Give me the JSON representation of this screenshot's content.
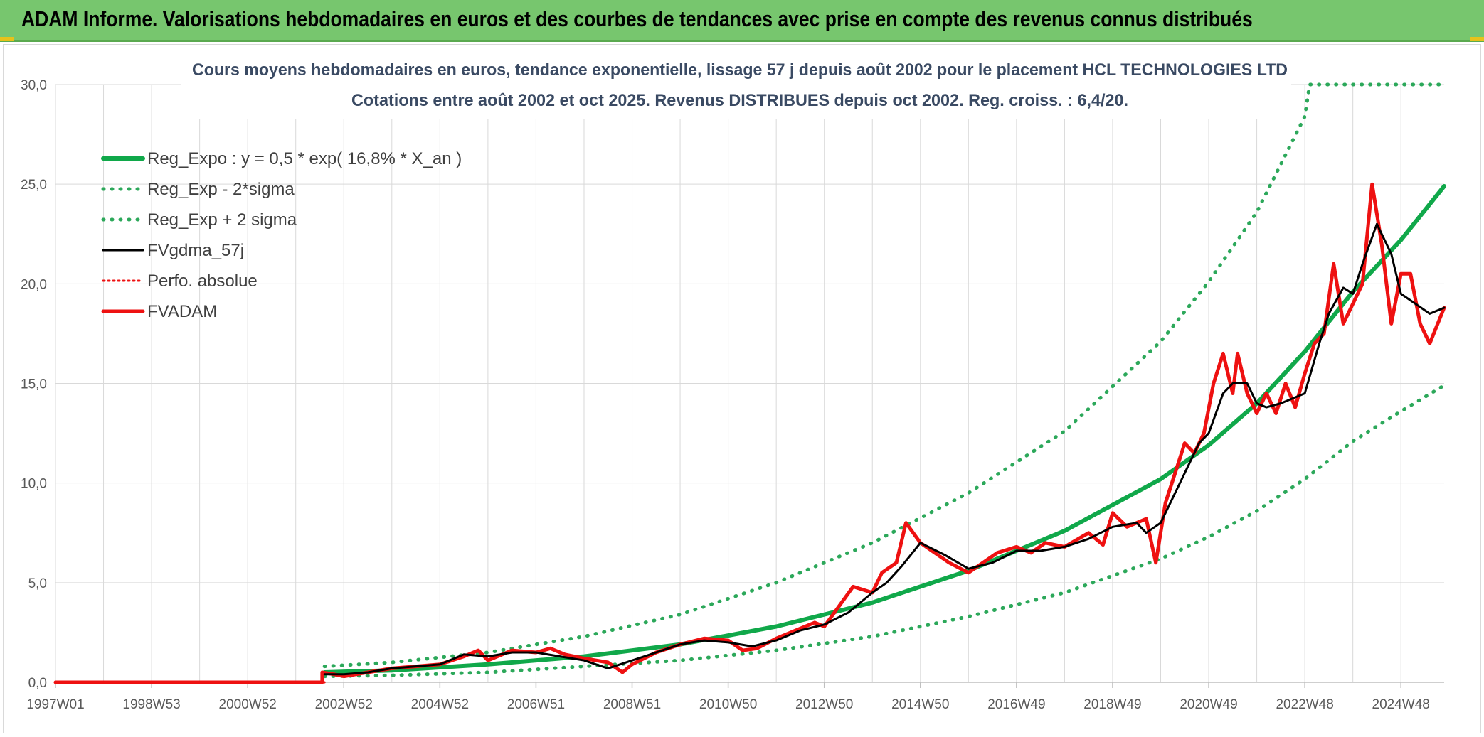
{
  "header": {
    "title": "ADAM Informe. Valorisations hebdomadaires en euros et des courbes de tendances avec prise en compte des revenus connus distribués"
  },
  "colors": {
    "header_bg": "#77c66e",
    "reg_green": "#10a84a",
    "band_green": "#2ca85a",
    "fvgdma_black": "#000000",
    "fvadam_red": "#ee1111",
    "perfo_red": "#ee1111"
  },
  "chart_data": {
    "type": "line",
    "title_line1": "Cours moyens hebdomadaires en euros, tendance exponentielle, lissage 57 j depuis août 2002 pour le placement HCL TECHNOLOGIES LTD",
    "title_line2": "Cotations entre août 2002 et oct 2025. Revenus DISTRIBUES depuis oct 2002. Reg. croiss. : 6,4/20.",
    "xlabel": "",
    "ylabel": "",
    "x_range": [
      1997.0,
      2025.9
    ],
    "ylim": [
      0,
      30
    ],
    "y_ticks": [
      0,
      5,
      10,
      15,
      20,
      25,
      30
    ],
    "y_tick_labels": [
      "0,0",
      "5,0",
      "10,0",
      "15,0",
      "20,0",
      "25,0",
      "30,0"
    ],
    "x_ticks": [
      1997.0,
      1999.0,
      2001.0,
      2003.0,
      2005.0,
      2007.0,
      2009.0,
      2011.0,
      2013.0,
      2015.0,
      2017.0,
      2019.0,
      2021.0,
      2023.0,
      2025.0
    ],
    "x_tick_labels": [
      "1997W01",
      "1998W53",
      "2000W52",
      "2002W52",
      "2004W52",
      "2006W51",
      "2008W51",
      "2010W50",
      "2012W50",
      "2014W50",
      "2016W49",
      "2018W49",
      "2020W49",
      "2022W48",
      "2024W48"
    ],
    "grid": true,
    "legend_position": "top-left",
    "legend": [
      {
        "name": "Reg_Expo : y = 0,5 * exp( 16,8% *  X_an )",
        "style": "solid-thick",
        "color": "#10a84a"
      },
      {
        "name": "Reg_Exp - 2*sigma",
        "style": "dotted",
        "color": "#2ca85a"
      },
      {
        "name": "Reg_Exp + 2 sigma",
        "style": "dotted",
        "color": "#2ca85a"
      },
      {
        "name": "FVgdma_57j",
        "style": "solid",
        "color": "#000000"
      },
      {
        "name": "Perfo. absolue",
        "style": "dotted",
        "color": "#ee1111"
      },
      {
        "name": "FVADAM",
        "style": "solid-thick",
        "color": "#ee1111"
      }
    ],
    "series": [
      {
        "name": "Reg_Expo : y = 0,5 * exp( 16,8% *  X_an )",
        "x": [
          2002.6,
          2004.0,
          2006.0,
          2008.0,
          2010.0,
          2012.0,
          2014.0,
          2016.0,
          2018.0,
          2020.0,
          2021.0,
          2022.0,
          2023.0,
          2024.0,
          2025.0,
          2025.9
        ],
        "y": [
          0.5,
          0.6,
          0.9,
          1.3,
          1.9,
          2.8,
          4.0,
          5.6,
          7.6,
          10.2,
          11.9,
          14.0,
          16.6,
          19.6,
          22.2,
          24.9
        ]
      },
      {
        "name": "Reg_Exp - 2*sigma",
        "x": [
          2002.6,
          2004.0,
          2006.0,
          2008.0,
          2010.0,
          2012.0,
          2014.0,
          2016.0,
          2018.0,
          2020.0,
          2021.0,
          2022.0,
          2023.0,
          2024.0,
          2025.0,
          2025.9
        ],
        "y": [
          0.3,
          0.35,
          0.5,
          0.8,
          1.1,
          1.6,
          2.3,
          3.3,
          4.5,
          6.2,
          7.3,
          8.6,
          10.2,
          12.1,
          13.6,
          14.9
        ]
      },
      {
        "name": "Reg_Exp + 2 sigma",
        "x": [
          2002.6,
          2004.0,
          2006.0,
          2008.0,
          2010.0,
          2012.0,
          2014.0,
          2016.0,
          2018.0,
          2020.0,
          2021.0,
          2022.0,
          2023.0,
          2023.1,
          2024.0,
          2025.0,
          2025.9
        ],
        "y": [
          0.8,
          1.0,
          1.5,
          2.3,
          3.4,
          5.0,
          7.0,
          9.5,
          12.6,
          17.1,
          20.1,
          23.6,
          28.4,
          30.0,
          30.0,
          30.0,
          30.0
        ]
      },
      {
        "name": "FVgdma_57j",
        "x": [
          2002.6,
          2003.0,
          2003.5,
          2004.0,
          2004.5,
          2005.0,
          2005.5,
          2006.0,
          2006.5,
          2007.0,
          2007.5,
          2008.0,
          2008.5,
          2009.0,
          2009.5,
          2010.0,
          2010.5,
          2011.0,
          2011.5,
          2012.0,
          2012.5,
          2013.0,
          2013.5,
          2014.0,
          2014.3,
          2014.6,
          2015.0,
          2015.5,
          2016.0,
          2016.5,
          2017.0,
          2017.5,
          2018.0,
          2018.5,
          2019.0,
          2019.5,
          2019.7,
          2020.0,
          2020.5,
          2020.8,
          2021.0,
          2021.3,
          2021.5,
          2021.8,
          2022.0,
          2022.2,
          2022.5,
          2022.8,
          2023.0,
          2023.3,
          2023.5,
          2023.8,
          2024.0,
          2024.2,
          2024.5,
          2024.8,
          2025.0,
          2025.3,
          2025.6,
          2025.9
        ],
        "y": [
          0.4,
          0.4,
          0.5,
          0.7,
          0.8,
          0.9,
          1.4,
          1.3,
          1.5,
          1.5,
          1.3,
          1.1,
          0.7,
          1.1,
          1.5,
          1.9,
          2.1,
          2.0,
          1.8,
          2.1,
          2.6,
          2.9,
          3.5,
          4.5,
          5.0,
          5.8,
          7.0,
          6.4,
          5.7,
          6.0,
          6.6,
          6.6,
          6.8,
          7.2,
          7.8,
          8.0,
          7.5,
          8.0,
          10.5,
          12.0,
          12.5,
          14.5,
          15.0,
          15.0,
          14.0,
          13.8,
          14.0,
          14.3,
          14.5,
          17.0,
          18.5,
          19.8,
          19.5,
          21.0,
          23.0,
          21.5,
          19.5,
          19.0,
          18.5,
          18.8
        ]
      },
      {
        "name": "Perfo. absolue",
        "x": [
          1997.0,
          2002.6
        ],
        "y": [
          0.0,
          0.0
        ]
      },
      {
        "name": "FVADAM",
        "x": [
          1997.0,
          2002.55,
          2002.55,
          2002.8,
          2003.0,
          2003.5,
          2004.0,
          2004.5,
          2005.0,
          2005.5,
          2005.8,
          2006.0,
          2006.5,
          2007.0,
          2007.3,
          2007.6,
          2008.0,
          2008.5,
          2008.8,
          2009.0,
          2009.5,
          2010.0,
          2010.5,
          2011.0,
          2011.3,
          2011.6,
          2012.0,
          2012.5,
          2012.8,
          2013.0,
          2013.3,
          2013.6,
          2014.0,
          2014.2,
          2014.5,
          2014.7,
          2015.0,
          2015.3,
          2015.6,
          2016.0,
          2016.3,
          2016.6,
          2017.0,
          2017.3,
          2017.6,
          2018.0,
          2018.5,
          2018.8,
          2019.0,
          2019.3,
          2019.5,
          2019.7,
          2019.9,
          2020.1,
          2020.3,
          2020.5,
          2020.7,
          2020.9,
          2021.1,
          2021.3,
          2021.5,
          2021.6,
          2021.8,
          2022.0,
          2022.2,
          2022.4,
          2022.6,
          2022.8,
          2023.0,
          2023.2,
          2023.4,
          2023.6,
          2023.8,
          2024.0,
          2024.2,
          2024.4,
          2024.6,
          2024.8,
          2025.0,
          2025.2,
          2025.4,
          2025.6,
          2025.9
        ],
        "y": [
          0.0,
          0.0,
          0.5,
          0.4,
          0.3,
          0.5,
          0.7,
          0.8,
          0.9,
          1.3,
          1.6,
          1.1,
          1.6,
          1.5,
          1.7,
          1.4,
          1.2,
          1.0,
          0.5,
          0.9,
          1.5,
          1.9,
          2.2,
          2.1,
          1.6,
          1.7,
          2.2,
          2.7,
          3.0,
          2.8,
          3.8,
          4.8,
          4.5,
          5.5,
          6.0,
          8.0,
          7.0,
          6.5,
          6.0,
          5.5,
          6.0,
          6.5,
          6.8,
          6.5,
          7.0,
          6.8,
          7.5,
          6.9,
          8.5,
          7.8,
          8.0,
          8.2,
          6.0,
          9.0,
          10.5,
          12.0,
          11.5,
          12.5,
          15.0,
          16.5,
          14.5,
          16.5,
          14.5,
          13.5,
          14.5,
          13.5,
          15.0,
          13.8,
          15.5,
          17.0,
          17.5,
          21.0,
          18.0,
          19.0,
          20.0,
          25.0,
          22.0,
          18.0,
          20.5,
          20.5,
          18.0,
          17.0,
          18.8
        ]
      }
    ]
  }
}
